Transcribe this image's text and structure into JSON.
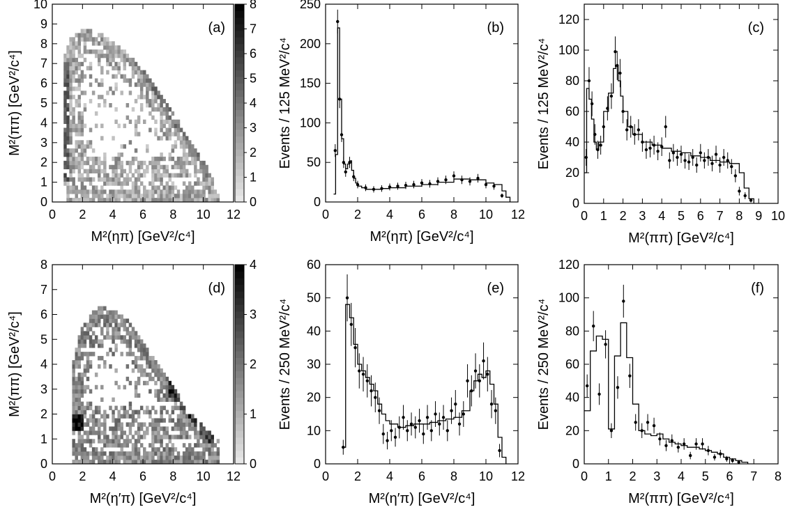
{
  "chart_data": [
    {
      "panel": "a",
      "type": "heatmap",
      "label": "(a)",
      "xlabel": "M²(ηπ) [GeV²/c⁴]",
      "ylabel": "M²(ππ) [GeV²/c⁴]",
      "xlim": [
        0,
        12
      ],
      "ylim": [
        0,
        10
      ],
      "xticks": [
        0,
        2,
        4,
        6,
        8,
        10,
        12
      ],
      "yticks": [
        0,
        1,
        2,
        3,
        4,
        5,
        6,
        7,
        8,
        9,
        10
      ],
      "colorbar": {
        "min": 0,
        "max": 8,
        "ticks": [
          0,
          1,
          2,
          3,
          4,
          5,
          6,
          7,
          8
        ]
      },
      "boundary": [
        [
          0.8,
          1.0
        ],
        [
          0.8,
          7.3
        ],
        [
          1.2,
          8.3
        ],
        [
          2.0,
          8.7
        ],
        [
          3.0,
          8.6
        ],
        [
          4.0,
          8.1
        ],
        [
          5.0,
          7.5
        ],
        [
          6.0,
          6.7
        ],
        [
          7.0,
          5.7
        ],
        [
          8.0,
          4.5
        ],
        [
          9.0,
          3.3
        ],
        [
          10.0,
          2.2
        ],
        [
          10.6,
          1.2
        ],
        [
          11.0,
          0.4
        ],
        [
          11.0,
          0.0
        ],
        [
          1.0,
          0.0
        ]
      ],
      "bands": [
        {
          "x": [
            0.8,
            1.1
          ],
          "y": [
            1.0,
            7.0
          ],
          "level": 4
        },
        {
          "from": [
            5.5,
            7.5
          ],
          "to": [
            10.5,
            1.5
          ],
          "level": 3
        }
      ]
    },
    {
      "panel": "b",
      "type": "histogram",
      "label": "(b)",
      "xlabel": "M²(ηπ) [GeV²/c⁴]",
      "ylabel": "Events / 125 MeV²/c⁴",
      "xlim": [
        0,
        12
      ],
      "ylim": [
        0,
        250
      ],
      "xticks": [
        0,
        2,
        4,
        6,
        8,
        10,
        12
      ],
      "yticks": [
        0,
        50,
        100,
        150,
        200,
        250
      ],
      "fit": {
        "x": [
          0.5,
          0.625,
          0.75,
          0.875,
          1.0,
          1.125,
          1.25,
          1.375,
          1.5,
          1.625,
          1.75,
          1.875,
          2.0,
          2.25,
          2.5,
          3.0,
          3.5,
          4.0,
          5.0,
          6.0,
          7.0,
          8.0,
          9.0,
          10.0,
          10.5,
          11.0,
          11.25,
          11.5
        ],
        "y": [
          10,
          60,
          220,
          130,
          80,
          48,
          42,
          48,
          52,
          40,
          30,
          24,
          20,
          18,
          16,
          16,
          17,
          18,
          20,
          22,
          25,
          29,
          28,
          24,
          22,
          14,
          6,
          0
        ]
      },
      "points": {
        "x": [
          0.6,
          0.75,
          0.875,
          1.0,
          1.125,
          1.25,
          1.5,
          1.75,
          2.0,
          2.5,
          3.0,
          3.5,
          4.0,
          4.5,
          5.0,
          5.5,
          6.0,
          6.5,
          7.0,
          7.5,
          8.0,
          8.5,
          9.0,
          9.5,
          10.0,
          10.5,
          11.0
        ],
        "y": [
          65,
          228,
          130,
          85,
          50,
          38,
          50,
          32,
          22,
          18,
          16,
          17,
          19,
          20,
          21,
          22,
          24,
          23,
          26,
          28,
          33,
          28,
          26,
          30,
          22,
          20,
          8
        ]
      }
    },
    {
      "panel": "c",
      "type": "histogram",
      "label": "(c)",
      "xlabel": "M²(ππ) [GeV²/c⁴]",
      "ylabel": "Events / 125 MeV²/c⁴",
      "xlim": [
        0,
        10
      ],
      "ylim": [
        0,
        130
      ],
      "xticks": [
        0,
        1,
        2,
        3,
        4,
        5,
        6,
        7,
        8,
        9,
        10
      ],
      "yticks": [
        0,
        20,
        40,
        60,
        80,
        100,
        120
      ],
      "fit": {
        "x": [
          0.0,
          0.125,
          0.25,
          0.375,
          0.5,
          0.625,
          0.75,
          1.0,
          1.25,
          1.5,
          1.625,
          1.75,
          1.875,
          2.0,
          2.25,
          2.5,
          3.0,
          3.5,
          4.0,
          4.5,
          5.0,
          5.5,
          6.0,
          6.5,
          7.0,
          7.5,
          8.0,
          8.25,
          8.5,
          8.75
        ],
        "y": [
          20,
          75,
          68,
          55,
          40,
          35,
          40,
          60,
          72,
          88,
          90,
          80,
          70,
          60,
          50,
          45,
          40,
          38,
          36,
          34,
          33,
          31,
          30,
          28,
          27,
          26,
          20,
          10,
          3,
          0
        ]
      },
      "points": {
        "x": [
          0.1,
          0.25,
          0.4,
          0.55,
          0.7,
          0.85,
          1.0,
          1.2,
          1.4,
          1.6,
          1.7,
          1.85,
          2.0,
          2.2,
          2.4,
          2.6,
          2.8,
          3.0,
          3.2,
          3.4,
          3.6,
          3.8,
          4.0,
          4.2,
          4.4,
          4.6,
          4.8,
          5.0,
          5.2,
          5.4,
          5.6,
          5.8,
          6.0,
          6.2,
          6.4,
          6.6,
          6.8,
          7.0,
          7.2,
          7.4,
          7.6,
          7.8,
          8.0,
          8.3,
          8.6
        ],
        "y": [
          30,
          80,
          65,
          45,
          35,
          38,
          50,
          62,
          70,
          99,
          90,
          85,
          60,
          48,
          50,
          45,
          48,
          40,
          35,
          36,
          38,
          34,
          37,
          50,
          28,
          33,
          30,
          32,
          28,
          27,
          30,
          25,
          33,
          28,
          30,
          26,
          32,
          25,
          30,
          28,
          24,
          18,
          8,
          5,
          2
        ]
      }
    },
    {
      "panel": "d",
      "type": "heatmap",
      "label": "(d)",
      "xlabel": "M²(η′π) [GeV²/c⁴]",
      "ylabel": "M²(ππ) [GeV²/c⁴]",
      "xlim": [
        0,
        12
      ],
      "ylim": [
        0,
        8
      ],
      "xticks": [
        0,
        2,
        4,
        6,
        8,
        10,
        12
      ],
      "yticks": [
        0,
        1,
        2,
        3,
        4,
        5,
        6,
        7,
        8
      ],
      "colorbar": {
        "min": 0,
        "max": 4,
        "ticks": [
          0,
          1,
          2,
          3,
          4
        ]
      },
      "boundary": [
        [
          1.3,
          1.2
        ],
        [
          1.3,
          4.0
        ],
        [
          2.0,
          5.6
        ],
        [
          3.0,
          6.3
        ],
        [
          4.0,
          6.2
        ],
        [
          5.0,
          5.8
        ],
        [
          6.0,
          5.0
        ],
        [
          7.0,
          4.1
        ],
        [
          8.0,
          3.1
        ],
        [
          9.0,
          2.1
        ],
        [
          10.0,
          1.5
        ],
        [
          11.0,
          0.9
        ],
        [
          11.0,
          0.0
        ],
        [
          1.3,
          0.0
        ]
      ],
      "bands": [
        {
          "x": [
            1.3,
            2.0
          ],
          "y": [
            1.3,
            2.0
          ],
          "level": 3
        },
        {
          "from": [
            8.0,
            3.0
          ],
          "to": [
            10.5,
            1.2
          ],
          "level": 2
        }
      ]
    },
    {
      "panel": "e",
      "type": "histogram",
      "label": "(e)",
      "xlabel": "M²(η′π) [GeV²/c⁴]",
      "ylabel": "Events / 250 MeV²/c⁴",
      "xlim": [
        0,
        12
      ],
      "ylim": [
        0,
        60
      ],
      "xticks": [
        0,
        2,
        4,
        6,
        8,
        10,
        12
      ],
      "yticks": [
        0,
        10,
        20,
        30,
        40,
        50,
        60
      ],
      "fit": {
        "x": [
          1.0,
          1.25,
          1.5,
          1.75,
          2.0,
          2.25,
          2.5,
          2.75,
          3.0,
          3.25,
          3.5,
          3.75,
          4.0,
          4.5,
          5.0,
          5.5,
          6.0,
          6.5,
          7.0,
          7.5,
          8.0,
          8.5,
          9.0,
          9.25,
          9.5,
          9.75,
          10.0,
          10.25,
          10.5,
          10.75,
          11.0,
          11.25
        ],
        "y": [
          5,
          48,
          44,
          36,
          30,
          28,
          26,
          24,
          22,
          18,
          15,
          13,
          12,
          11,
          11.5,
          12,
          12,
          12.5,
          13,
          13.5,
          14,
          16,
          22,
          25,
          27,
          26,
          28,
          24,
          18,
          8,
          2,
          0
        ]
      },
      "points": {
        "x": [
          1.1,
          1.35,
          1.6,
          1.85,
          2.1,
          2.35,
          2.6,
          2.85,
          3.1,
          3.35,
          3.6,
          3.85,
          4.1,
          4.35,
          4.6,
          4.85,
          5.1,
          5.35,
          5.6,
          5.85,
          6.1,
          6.35,
          6.6,
          6.85,
          7.1,
          7.35,
          7.6,
          7.85,
          8.1,
          8.35,
          8.6,
          8.85,
          9.1,
          9.35,
          9.6,
          9.85,
          10.1,
          10.35,
          10.6,
          10.85
        ],
        "y": [
          5,
          50,
          42,
          35,
          28,
          27,
          25,
          22,
          20,
          16,
          9,
          7,
          10,
          8,
          11,
          14,
          10,
          12,
          11,
          13,
          9,
          14,
          10,
          15,
          12,
          14,
          10,
          16,
          18,
          12,
          15,
          25,
          22,
          28,
          25,
          31,
          27,
          18,
          16,
          4
        ]
      }
    },
    {
      "panel": "f",
      "type": "histogram",
      "label": "(f)",
      "xlabel": "M²(ππ) [GeV²/c⁴]",
      "ylabel": "Events / 250 MeV²/c⁴",
      "xlim": [
        0,
        8
      ],
      "ylim": [
        0,
        120
      ],
      "xticks": [
        0,
        1,
        2,
        3,
        4,
        5,
        6,
        7,
        8
      ],
      "yticks": [
        0,
        20,
        40,
        60,
        80,
        100,
        120
      ],
      "fit": {
        "x": [
          0.0,
          0.25,
          0.5,
          0.75,
          1.0,
          1.25,
          1.5,
          1.75,
          2.0,
          2.25,
          2.5,
          2.75,
          3.0,
          3.25,
          3.5,
          3.75,
          4.0,
          4.25,
          4.5,
          4.75,
          5.0,
          5.25,
          5.5,
          5.75,
          6.0,
          6.25,
          6.5,
          6.75
        ],
        "y": [
          32,
          68,
          77,
          75,
          21,
          65,
          85,
          64,
          36,
          20,
          18,
          17,
          18,
          15,
          13,
          12,
          11,
          10,
          10,
          9,
          8,
          7,
          6,
          4,
          3,
          2,
          1,
          0
        ]
      },
      "points": {
        "x": [
          0.12,
          0.38,
          0.62,
          0.88,
          1.12,
          1.38,
          1.62,
          1.88,
          2.12,
          2.38,
          2.62,
          2.88,
          3.12,
          3.38,
          3.62,
          3.88,
          4.12,
          4.38,
          4.62,
          4.88,
          5.12,
          5.38,
          5.62,
          5.88,
          6.12,
          6.38
        ],
        "y": [
          47,
          83,
          42,
          72,
          20,
          46,
          98,
          53,
          25,
          20,
          25,
          23,
          15,
          11,
          14,
          10,
          12,
          5,
          12,
          12,
          8,
          4,
          6,
          3,
          2,
          1
        ]
      }
    }
  ]
}
